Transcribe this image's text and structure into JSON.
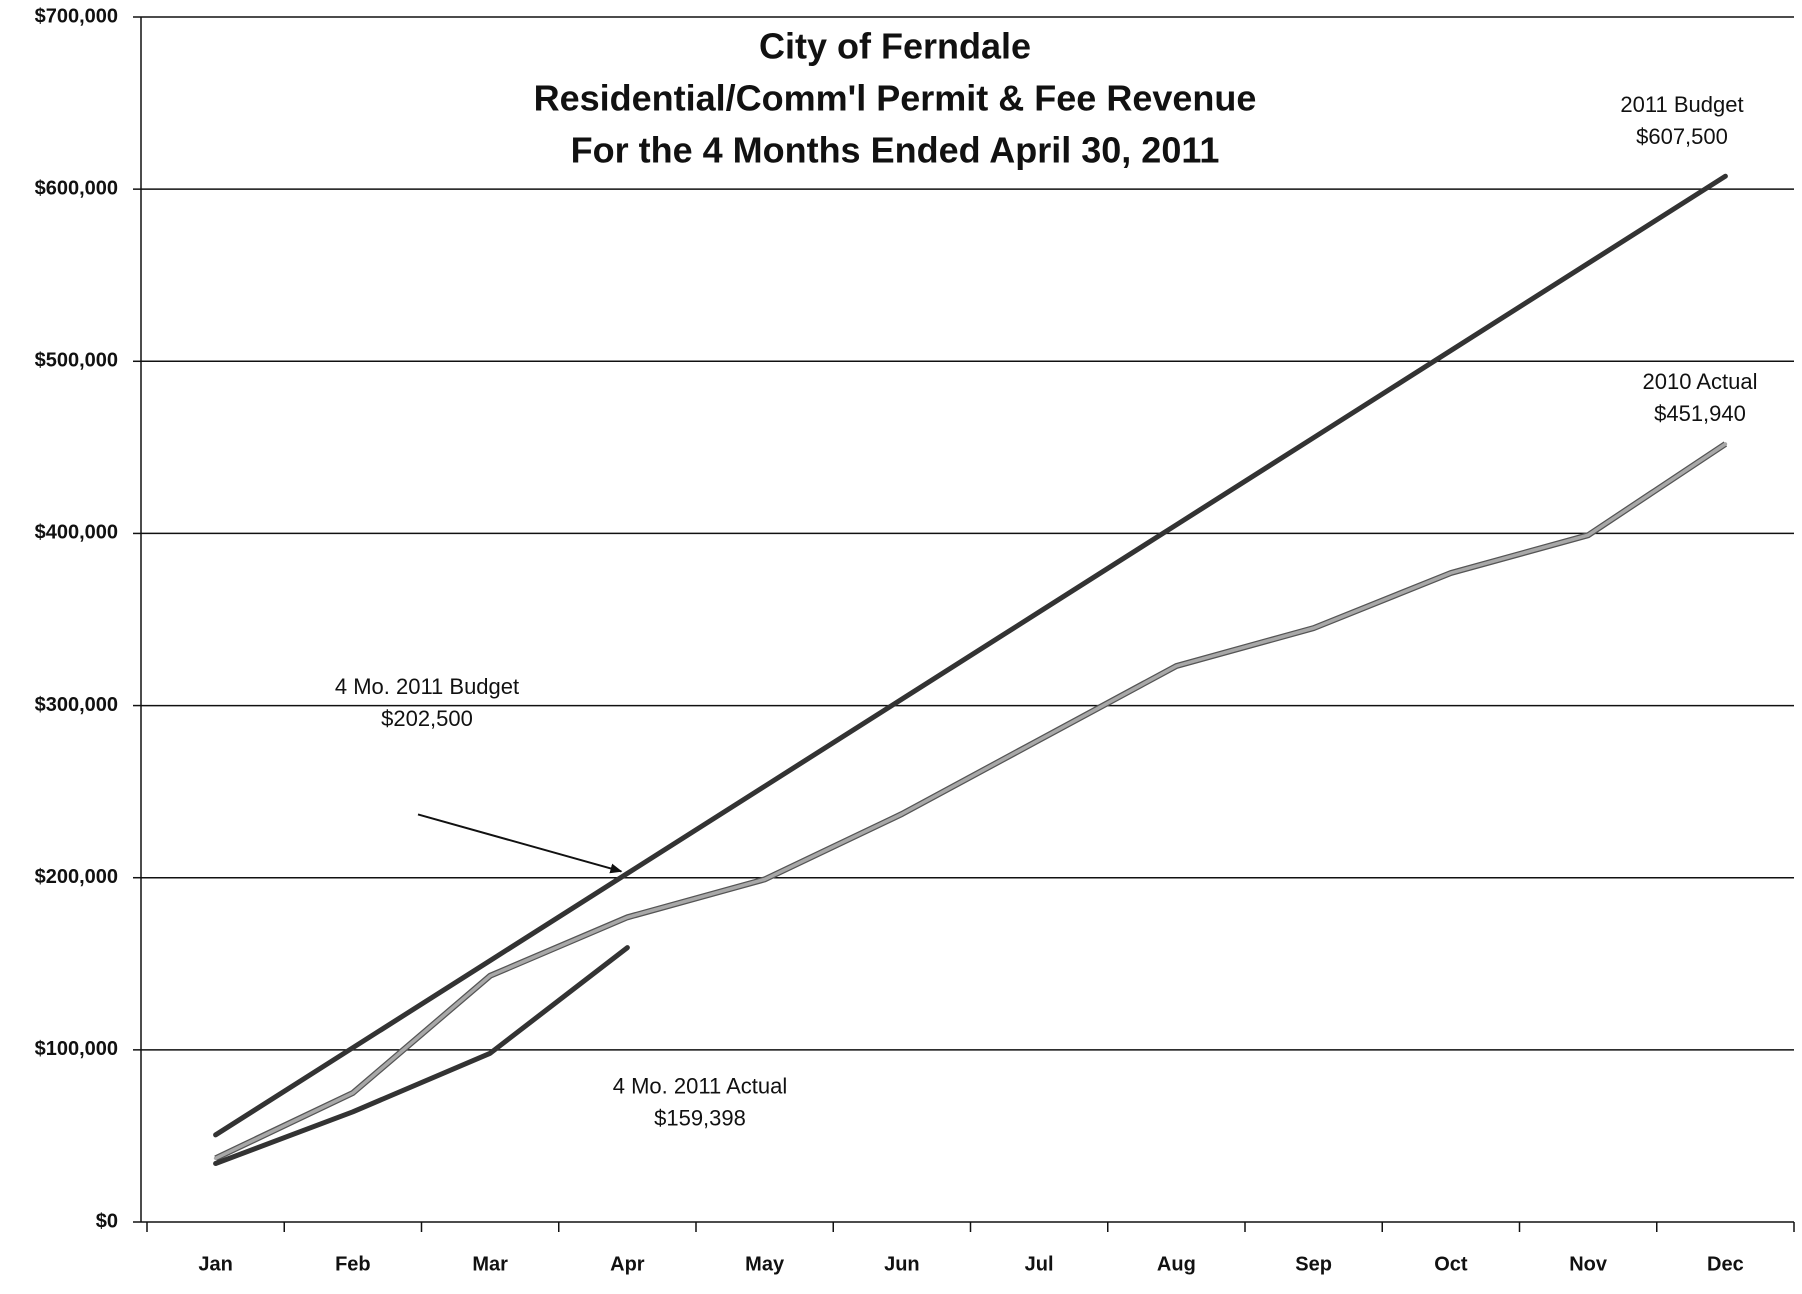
{
  "chart_data": {
    "type": "line",
    "title": [
      "City of Ferndale",
      "Residential/Comm'l Permit & Fee Revenue",
      "For the 4 Months Ended April 30, 2011"
    ],
    "categories": [
      "Jan",
      "Feb",
      "Mar",
      "Apr",
      "May",
      "Jun",
      "Jul",
      "Aug",
      "Sep",
      "Oct",
      "Nov",
      "Dec"
    ],
    "series": [
      {
        "name": "2011 Budget",
        "color": "#333333",
        "values": [
          50625,
          101250,
          151875,
          202500,
          253125,
          303750,
          354375,
          405000,
          455625,
          506250,
          556875,
          607500
        ]
      },
      {
        "name": "2010 Actual",
        "color": "#a8a8a8",
        "values": [
          37000,
          75000,
          143000,
          177000,
          199000,
          237000,
          280000,
          323000,
          345000,
          377000,
          399000,
          451940
        ]
      },
      {
        "name": "4 Mo. 2011 Actual",
        "color": "#333333",
        "values": [
          34000,
          64000,
          98000,
          159398,
          null,
          null,
          null,
          null,
          null,
          null,
          null,
          null
        ]
      }
    ],
    "ylim": [
      0,
      700000
    ],
    "yticks": [
      {
        "value": 0,
        "label": "$0"
      },
      {
        "value": 100000,
        "label": "$100,000"
      },
      {
        "value": 200000,
        "label": "$200,000"
      },
      {
        "value": 300000,
        "label": "$300,000"
      },
      {
        "value": 400000,
        "label": "$400,000"
      },
      {
        "value": 500000,
        "label": "$500,000"
      },
      {
        "value": 600000,
        "label": "$600,000"
      },
      {
        "value": 700000,
        "label": "$700,000"
      }
    ],
    "grid": true,
    "annotations": [
      {
        "text": "2011 Budget",
        "value": 607500,
        "label": "$607,500"
      },
      {
        "text": "2010 Actual",
        "value": 451940,
        "label": "$451,940"
      },
      {
        "text": "4 Mo. 2011 Budget",
        "value": 202500,
        "label": "$202,500"
      },
      {
        "text": "4 Mo. 2011 Actual",
        "value": 159398,
        "label": "$159,398"
      }
    ]
  }
}
